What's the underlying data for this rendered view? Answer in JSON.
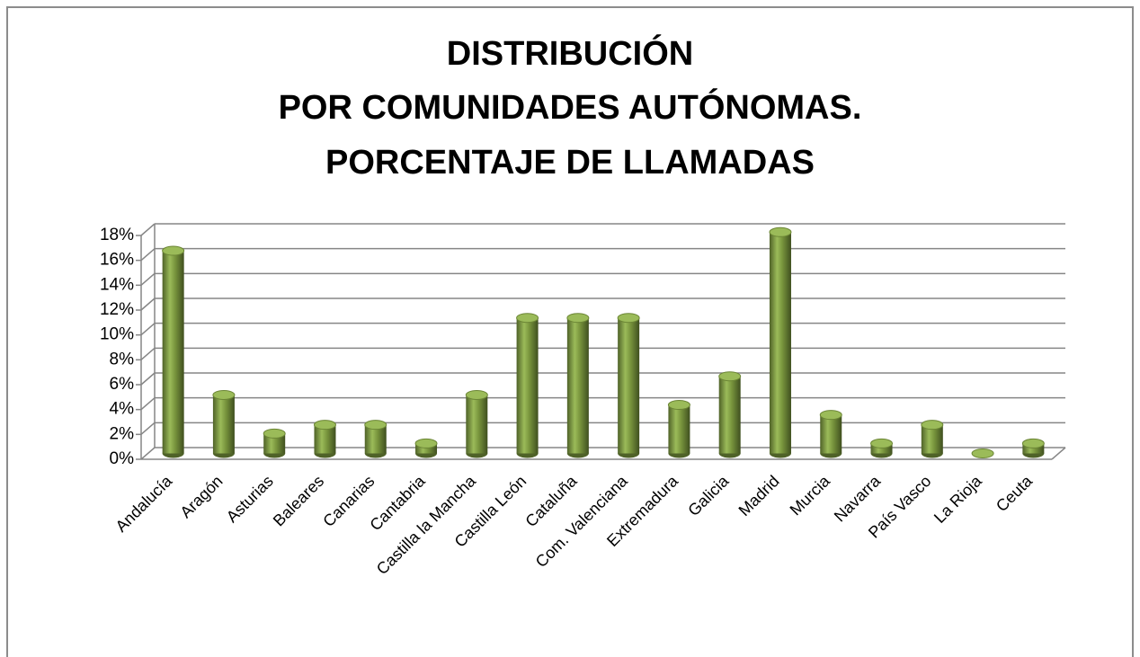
{
  "chart_data": {
    "type": "bar",
    "title": [
      "DISTRIBUCIÓN",
      "POR COMUNIDADES AUTÓNOMAS.",
      "PORCENTAJE DE LLAMADAS"
    ],
    "categories": [
      "Andalucía",
      "Aragón",
      "Asturias",
      "Baleares",
      "Canarias",
      "Cantabria",
      "Castilla la Mancha",
      "Castilla León",
      "Cataluña",
      "Com. Valenciana",
      "Extremadura",
      "Galicia",
      "Madrid",
      "Murcia",
      "Navarra",
      "País Vasco",
      "La Rioja",
      "Ceuta"
    ],
    "values": [
      16.3,
      4.7,
      1.6,
      2.3,
      2.3,
      0.8,
      4.7,
      10.9,
      10.9,
      10.9,
      3.9,
      6.2,
      17.8,
      3.1,
      0.8,
      2.3,
      0,
      0.8
    ],
    "color": "#77933c",
    "ylim": [
      0,
      18
    ],
    "yticks": [
      {
        "value": 0,
        "label": "0%"
      },
      {
        "value": 2,
        "label": "2%"
      },
      {
        "value": 4,
        "label": "4%"
      },
      {
        "value": 6,
        "label": "6%"
      },
      {
        "value": 8,
        "label": "8%"
      },
      {
        "value": 10,
        "label": "10%"
      },
      {
        "value": 12,
        "label": "12%"
      },
      {
        "value": 14,
        "label": "14%"
      },
      {
        "value": 16,
        "label": "16%"
      },
      {
        "value": 18,
        "label": "18%"
      }
    ],
    "grid": true
  }
}
